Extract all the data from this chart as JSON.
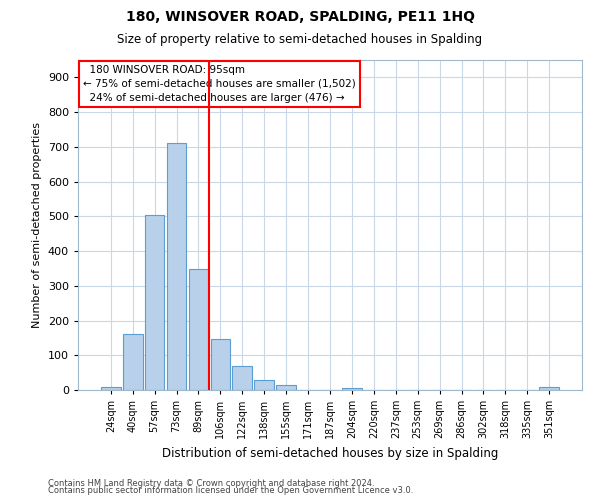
{
  "title": "180, WINSOVER ROAD, SPALDING, PE11 1HQ",
  "subtitle": "Size of property relative to semi-detached houses in Spalding",
  "xlabel": "Distribution of semi-detached houses by size in Spalding",
  "ylabel": "Number of semi-detached properties",
  "footnote1": "Contains HM Land Registry data © Crown copyright and database right 2024.",
  "footnote2": "Contains public sector information licensed under the Open Government Licence v3.0.",
  "categories": [
    "24sqm",
    "40sqm",
    "57sqm",
    "73sqm",
    "89sqm",
    "106sqm",
    "122sqm",
    "138sqm",
    "155sqm",
    "171sqm",
    "187sqm",
    "204sqm",
    "220sqm",
    "237sqm",
    "253sqm",
    "269sqm",
    "286sqm",
    "302sqm",
    "318sqm",
    "335sqm",
    "351sqm"
  ],
  "values": [
    8,
    160,
    503,
    712,
    347,
    148,
    68,
    30,
    13,
    0,
    0,
    5,
    0,
    0,
    0,
    0,
    0,
    0,
    0,
    0,
    10
  ],
  "bar_color": "#b8d0ea",
  "bar_edge_color": "#5a9fd4",
  "reference_line_x": 4.5,
  "reference_line_label": "180 WINSOVER ROAD: 95sqm",
  "pct_smaller": 75,
  "count_smaller": 1502,
  "pct_larger": 24,
  "count_larger": 476,
  "ylim": [
    0,
    950
  ],
  "yticks": [
    0,
    100,
    200,
    300,
    400,
    500,
    600,
    700,
    800,
    900
  ],
  "bg_color": "#ffffff",
  "grid_color": "#c8d8e8"
}
